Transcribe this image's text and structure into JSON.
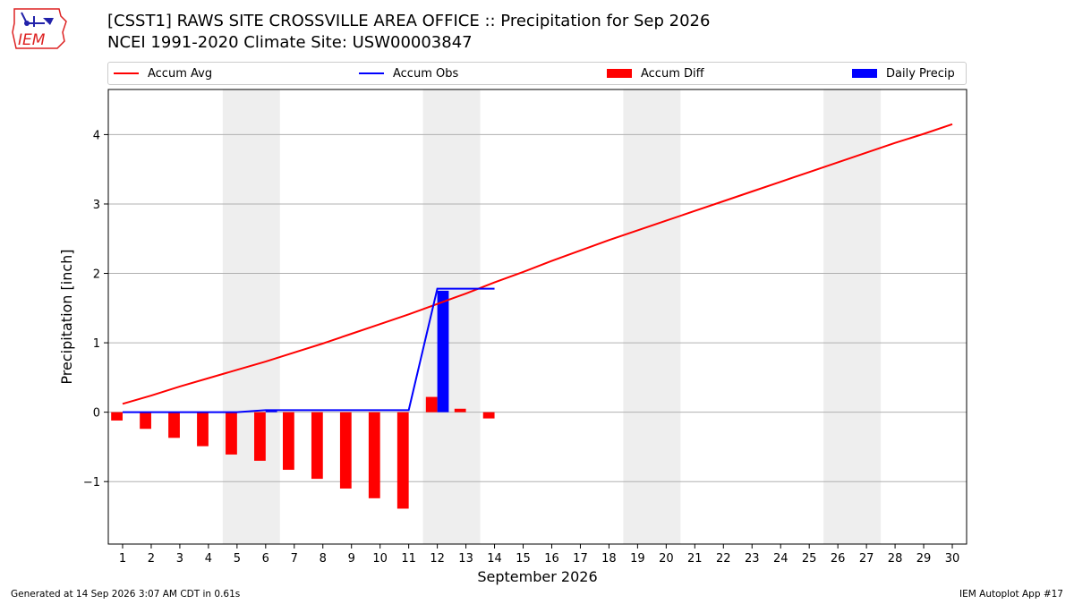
{
  "header": {
    "title_line1": "[CSST1] RAWS SITE  CROSSVILLE AREA OFFICE :: Precipitation for Sep 2026",
    "title_line2": "NCEI 1991-2020 Climate Site: USW00003847",
    "logo_text": "IEM"
  },
  "footer": {
    "left": "Generated at 14 Sep 2026 3:07 AM CDT in 0.61s",
    "right": "IEM Autoplot App #17"
  },
  "colors": {
    "accum_avg": "#ff0000",
    "accum_obs": "#0000ff",
    "accum_diff": "#ff0000",
    "daily_precip": "#0000ff",
    "weekend_shade": "#eeeeee",
    "grid": "#b0b0b0"
  },
  "chart_data": {
    "type": "bar",
    "title": "[CSST1] RAWS SITE  CROSSVILLE AREA OFFICE :: Precipitation for Sep 2026",
    "xlabel": "September 2026",
    "ylabel": "Precipitation [inch]",
    "ylim": [
      -1.9,
      4.65
    ],
    "xlim": [
      0.5,
      30.5
    ],
    "yticks": [
      -1,
      0,
      1,
      2,
      3,
      4
    ],
    "ytick_labels": [
      "−1",
      "0",
      "1",
      "2",
      "3",
      "4"
    ],
    "grid": "horizontal",
    "legend_position": "top",
    "categories": [
      "1",
      "2",
      "3",
      "4",
      "5",
      "6",
      "7",
      "8",
      "9",
      "10",
      "11",
      "12",
      "13",
      "14",
      "15",
      "16",
      "17",
      "18",
      "19",
      "20",
      "21",
      "22",
      "23",
      "24",
      "25",
      "26",
      "27",
      "28",
      "29",
      "30"
    ],
    "weekend_spans": [
      [
        4.5,
        6.5
      ],
      [
        11.5,
        13.5
      ],
      [
        18.5,
        20.5
      ],
      [
        25.5,
        27.5
      ]
    ],
    "series": [
      {
        "name": "Accum Avg",
        "kind": "line",
        "x": [
          1,
          2,
          3,
          4,
          5,
          6,
          7,
          8,
          9,
          10,
          11,
          12,
          13,
          14,
          15,
          16,
          17,
          18,
          19,
          20,
          21,
          22,
          23,
          24,
          25,
          26,
          27,
          28,
          29,
          30
        ],
        "values": [
          0.12,
          0.24,
          0.37,
          0.49,
          0.61,
          0.73,
          0.86,
          0.99,
          1.13,
          1.27,
          1.41,
          1.56,
          1.71,
          1.87,
          2.02,
          2.18,
          2.33,
          2.48,
          2.62,
          2.76,
          2.9,
          3.04,
          3.18,
          3.32,
          3.46,
          3.6,
          3.74,
          3.88,
          4.01,
          4.15
        ]
      },
      {
        "name": "Accum Obs",
        "kind": "line",
        "x": [
          1,
          2,
          3,
          4,
          5,
          6,
          7,
          8,
          9,
          10,
          11,
          12,
          13,
          14
        ],
        "values": [
          0,
          0,
          0,
          0,
          0,
          0.03,
          0.03,
          0.03,
          0.03,
          0.03,
          0.03,
          1.78,
          1.78,
          1.78
        ]
      },
      {
        "name": "Accum Diff",
        "kind": "bar",
        "x": [
          1,
          2,
          3,
          4,
          5,
          6,
          7,
          8,
          9,
          10,
          11,
          12,
          13,
          14
        ],
        "values": [
          -0.12,
          -0.24,
          -0.37,
          -0.49,
          -0.61,
          -0.7,
          -0.83,
          -0.96,
          -1.1,
          -1.24,
          -1.39,
          0.22,
          0.05,
          -0.09
        ]
      },
      {
        "name": "Daily Precip",
        "kind": "bar",
        "x": [
          6,
          12
        ],
        "values": [
          0.03,
          1.75
        ]
      }
    ]
  }
}
